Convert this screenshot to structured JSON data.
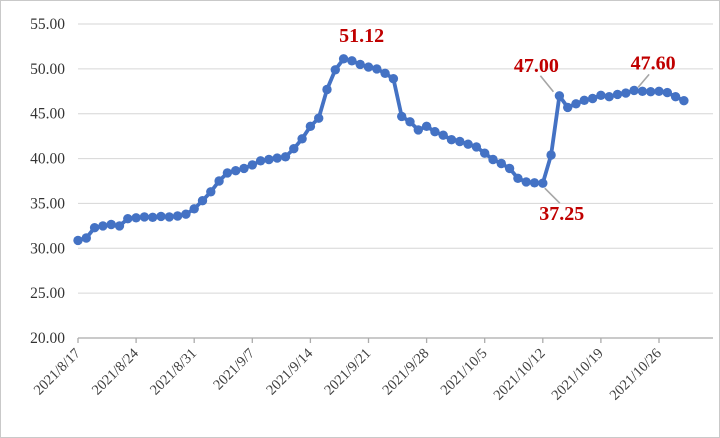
{
  "chart": {
    "colors": {
      "line": "#4472C4",
      "marker": "#4472C4",
      "annotation": "#C00000",
      "grid": "#D6D6D6",
      "axis": "#ABABAB",
      "leader": "#A6A6A6",
      "y_label": "#333333",
      "x_label": "#404040",
      "background": "#FFFFFF"
    }
  },
  "chart_data": {
    "type": "line",
    "title": "",
    "xlabel": "",
    "ylabel": "",
    "ylim": [
      20,
      55
    ],
    "y_tick_labels": [
      "20.00",
      "25.00",
      "30.00",
      "35.00",
      "40.00",
      "45.00",
      "50.00",
      "55.00"
    ],
    "x_tick_labels": [
      "2021/8/17",
      "2021/8/24",
      "2021/8/31",
      "2021/9/7",
      "2021/9/14",
      "2021/9/21",
      "2021/9/28",
      "2021/10/5",
      "2021/10/12",
      "2021/10/19",
      "2021/10/26"
    ],
    "grid": "horizontal",
    "legend": "none",
    "x": [
      "2021/8/17",
      "2021/8/18",
      "2021/8/19",
      "2021/8/20",
      "2021/8/21",
      "2021/8/22",
      "2021/8/23",
      "2021/8/24",
      "2021/8/25",
      "2021/8/26",
      "2021/8/27",
      "2021/8/28",
      "2021/8/29",
      "2021/8/30",
      "2021/8/31",
      "2021/9/1",
      "2021/9/2",
      "2021/9/3",
      "2021/9/4",
      "2021/9/5",
      "2021/9/6",
      "2021/9/7",
      "2021/9/8",
      "2021/9/9",
      "2021/9/10",
      "2021/9/11",
      "2021/9/12",
      "2021/9/13",
      "2021/9/14",
      "2021/9/15",
      "2021/9/16",
      "2021/9/17",
      "2021/9/18",
      "2021/9/19",
      "2021/9/20",
      "2021/9/21",
      "2021/9/22",
      "2021/9/23",
      "2021/9/24",
      "2021/9/25",
      "2021/9/26",
      "2021/9/27",
      "2021/9/28",
      "2021/9/29",
      "2021/9/30",
      "2021/10/1",
      "2021/10/2",
      "2021/10/3",
      "2021/10/4",
      "2021/10/5",
      "2021/10/6",
      "2021/10/7",
      "2021/10/8",
      "2021/10/9",
      "2021/10/10",
      "2021/10/11",
      "2021/10/12",
      "2021/10/13",
      "2021/10/14",
      "2021/10/15",
      "2021/10/16",
      "2021/10/17",
      "2021/10/18",
      "2021/10/19",
      "2021/10/20",
      "2021/10/21",
      "2021/10/22",
      "2021/10/23",
      "2021/10/24",
      "2021/10/25",
      "2021/10/26",
      "2021/10/27",
      "2021/10/28",
      "2021/10/29"
    ],
    "values": [
      30.88,
      31.15,
      32.3,
      32.5,
      32.65,
      32.5,
      33.3,
      33.4,
      33.5,
      33.45,
      33.55,
      33.5,
      33.6,
      33.8,
      34.4,
      35.3,
      36.3,
      37.5,
      38.4,
      38.65,
      38.9,
      39.3,
      39.75,
      39.9,
      40.05,
      40.2,
      41.1,
      42.2,
      43.6,
      44.5,
      47.7,
      49.9,
      51.12,
      50.9,
      50.5,
      50.2,
      50.0,
      49.5,
      48.9,
      44.7,
      44.1,
      43.2,
      43.6,
      43.0,
      42.6,
      42.1,
      41.9,
      41.6,
      41.3,
      40.6,
      39.9,
      39.45,
      38.9,
      37.8,
      37.4,
      37.3,
      37.25,
      40.4,
      47.0,
      45.7,
      46.1,
      46.5,
      46.7,
      47.05,
      46.9,
      47.15,
      47.3,
      47.6,
      47.5,
      47.45,
      47.5,
      47.35,
      46.9,
      46.45
    ],
    "annotations": [
      {
        "label": "51.12",
        "date": "2021/9/18",
        "value": 51.12,
        "placement": "above",
        "leader": false
      },
      {
        "label": "47.00",
        "date": "2021/10/14",
        "value": 47.0,
        "placement": "above-left",
        "leader": true
      },
      {
        "label": "47.60",
        "date": "2021/10/23",
        "value": 47.6,
        "placement": "above-right",
        "leader": true
      },
      {
        "label": "37.25",
        "date": "2021/10/12",
        "value": 37.25,
        "placement": "below-right",
        "leader": true
      }
    ]
  }
}
